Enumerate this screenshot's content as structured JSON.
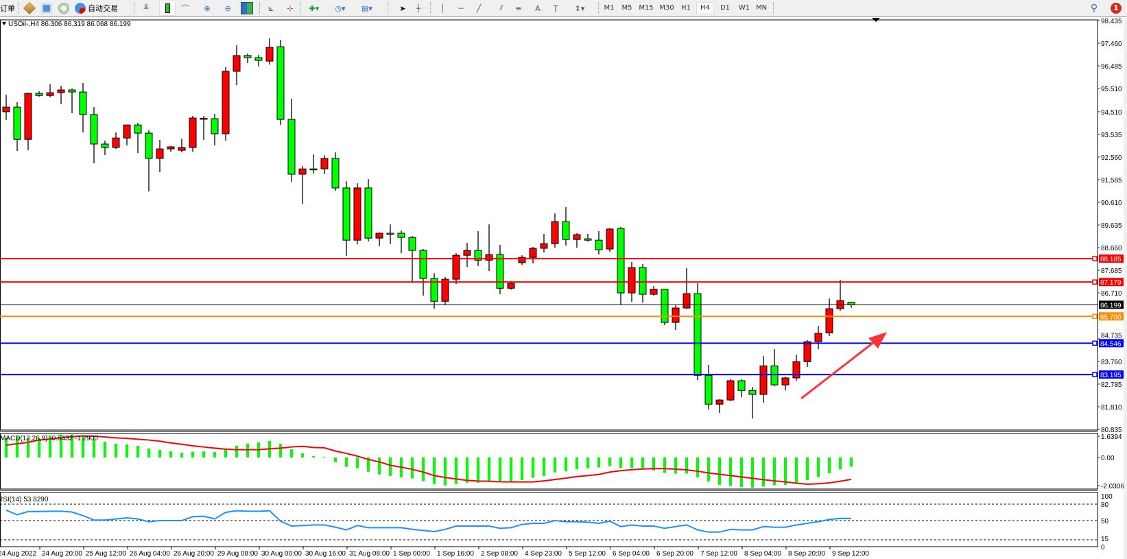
{
  "toolbar": {
    "order_label": "订单",
    "auto_trade_label": "自动交易",
    "timeframes": [
      "M1",
      "M5",
      "M15",
      "M30",
      "H1",
      "H4",
      "D1",
      "W1",
      "MN"
    ],
    "active_timeframe": "H4",
    "notification_count": "1"
  },
  "chart_header": {
    "symbol": "USOil-,H4",
    "ohlc": "86.306 86.319 86.068 86.199"
  },
  "macd_header": "MACD(12,26,9) -0.5432 -1.2900",
  "rsi_header": "RSI(14) 53.8290",
  "colors": {
    "bull": "#ff0000",
    "bear": "#00ff00",
    "macd_hist": "#00ff00",
    "macd_signal": "#ff0000",
    "rsi": "#1e90ff",
    "arrow": "#ff3333"
  },
  "chart_data": [
    {
      "type": "candlestick",
      "y_range": [
        80.835,
        98.435
      ],
      "price_ticks": [
        "98.435",
        "97.460",
        "96.485",
        "95.510",
        "94.510",
        "93.535",
        "92.560",
        "91.585",
        "90.610",
        "89.635",
        "88.660",
        "87.685",
        "86.710",
        "84.735",
        "83.760",
        "82.785",
        "81.810",
        "80.835"
      ],
      "time_labels": [
        "24 Aug 2022",
        "24 Aug 20:00",
        "25 Aug 12:00",
        "26 Aug 04:00",
        "26 Aug 20:00",
        "29 Aug 08:00",
        "30 Aug 00:00",
        "30 Aug 16:00",
        "31 Aug 08:00",
        "1 Sep 00:00",
        "1 Sep 16:00",
        "2 Sep 08:00",
        "4 Sep 23:00",
        "5 Sep 12:00",
        "6 Sep 04:00",
        "6 Sep 20:00",
        "7 Sep 12:00",
        "8 Sep 04:00",
        "8 Sep 20:00",
        "9 Sep 12:00"
      ],
      "candles_ohlc": [
        [
          94.51,
          95.24,
          94.15,
          94.71
        ],
        [
          94.71,
          94.92,
          92.82,
          93.32
        ],
        [
          93.32,
          95.33,
          92.85,
          95.3
        ],
        [
          95.3,
          95.39,
          95.16,
          95.21
        ],
        [
          95.21,
          95.69,
          95.13,
          95.33
        ],
        [
          95.33,
          95.63,
          94.83,
          95.45
        ],
        [
          95.45,
          95.51,
          94.45,
          95.36
        ],
        [
          95.36,
          95.75,
          93.62,
          94.39
        ],
        [
          94.39,
          94.71,
          92.29,
          93.12
        ],
        [
          93.12,
          93.27,
          92.65,
          92.97
        ],
        [
          92.97,
          93.62,
          92.91,
          93.38
        ],
        [
          93.38,
          93.96,
          93.06,
          93.94
        ],
        [
          93.94,
          94.03,
          92.73,
          93.59
        ],
        [
          93.59,
          93.71,
          91.08,
          92.5
        ],
        [
          92.5,
          93.3,
          91.91,
          92.91
        ],
        [
          92.91,
          93.03,
          92.79,
          93.0
        ],
        [
          92.85,
          93.35,
          92.76,
          92.97
        ],
        [
          92.97,
          94.33,
          92.79,
          94.24
        ],
        [
          94.21,
          94.33,
          93.3,
          94.23
        ],
        [
          94.21,
          94.42,
          93.06,
          93.56
        ],
        [
          93.56,
          96.43,
          93.27,
          96.25
        ],
        [
          96.25,
          97.37,
          95.66,
          96.93
        ],
        [
          96.93,
          97.02,
          96.6,
          96.84
        ],
        [
          96.84,
          96.96,
          96.46,
          96.72
        ],
        [
          96.69,
          97.67,
          96.54,
          97.28
        ],
        [
          97.31,
          97.61,
          93.94,
          94.18
        ],
        [
          94.18,
          95.07,
          91.49,
          91.82
        ],
        [
          91.82,
          92.17,
          90.55,
          92.05
        ],
        [
          92.05,
          92.67,
          91.85,
          92.04
        ],
        [
          92.05,
          92.64,
          91.82,
          92.5
        ],
        [
          92.5,
          92.76,
          91.11,
          91.23
        ],
        [
          91.23,
          91.52,
          88.3,
          88.98
        ],
        [
          88.98,
          91.43,
          88.8,
          91.23
        ],
        [
          91.23,
          91.61,
          88.92,
          89.07
        ],
        [
          89.07,
          89.31,
          88.72,
          89.28
        ],
        [
          89.28,
          89.66,
          88.81,
          89.26
        ],
        [
          89.28,
          89.4,
          88.42,
          89.1
        ],
        [
          89.1,
          89.16,
          87.15,
          88.54
        ],
        [
          88.54,
          88.6,
          86.59,
          87.33
        ],
        [
          87.33,
          87.56,
          86.03,
          86.35
        ],
        [
          86.35,
          87.39,
          86.21,
          87.3
        ],
        [
          87.3,
          88.42,
          87.09,
          88.33
        ],
        [
          88.33,
          88.87,
          87.83,
          88.54
        ],
        [
          88.54,
          89.37,
          87.86,
          88.12
        ],
        [
          88.12,
          89.66,
          87.65,
          88.36
        ],
        [
          88.36,
          88.78,
          86.65,
          86.91
        ],
        [
          86.91,
          87.21,
          86.85,
          87.12
        ],
        [
          88.01,
          88.33,
          87.92,
          88.24
        ],
        [
          88.24,
          88.69,
          87.98,
          88.63
        ],
        [
          88.63,
          89.25,
          88.45,
          88.83
        ],
        [
          88.83,
          90.13,
          88.66,
          89.78
        ],
        [
          89.78,
          90.4,
          88.75,
          89.01
        ],
        [
          89.01,
          89.28,
          88.66,
          89.22
        ],
        [
          89.04,
          89.25,
          88.92,
          88.98
        ],
        [
          88.98,
          89.37,
          88.36,
          88.57
        ],
        [
          88.6,
          89.51,
          88.48,
          89.46
        ],
        [
          89.48,
          89.55,
          86.21,
          86.71
        ],
        [
          86.71,
          88.04,
          86.32,
          87.8
        ],
        [
          87.8,
          87.95,
          86.29,
          86.65
        ],
        [
          86.65,
          87.0,
          86.6,
          86.87
        ],
        [
          86.87,
          86.89,
          85.32,
          85.44
        ],
        [
          85.44,
          86.18,
          85.11,
          86.06
        ],
        [
          86.06,
          87.77,
          86.03,
          86.68
        ],
        [
          86.68,
          87.12,
          82.96,
          83.16
        ],
        [
          83.16,
          83.61,
          81.69,
          81.92
        ],
        [
          81.92,
          82.13,
          81.54,
          82.1
        ],
        [
          82.1,
          83.01,
          82.05,
          82.93
        ],
        [
          82.93,
          82.99,
          82.22,
          82.51
        ],
        [
          82.51,
          82.66,
          81.3,
          82.34
        ],
        [
          82.34,
          83.99,
          81.98,
          83.57
        ],
        [
          83.57,
          84.29,
          82.7,
          82.75
        ],
        [
          82.75,
          83.1,
          82.51,
          83.05
        ],
        [
          83.05,
          84.05,
          82.93,
          83.75
        ],
        [
          83.75,
          84.67,
          83.52,
          84.61
        ],
        [
          84.61,
          85.29,
          84.29,
          84.97
        ],
        [
          84.99,
          86.47,
          84.85,
          86.03
        ],
        [
          86.03,
          87.27,
          85.95,
          86.38
        ],
        [
          86.306,
          86.319,
          86.068,
          86.199
        ]
      ],
      "horizontal_lines": [
        {
          "price": 88.185,
          "color": "#ff0000",
          "label_text": "#ffffff"
        },
        {
          "price": 87.179,
          "color": "#ff0000",
          "label_text": "#ffffff"
        },
        {
          "price": 85.7,
          "color": "#ff8c00",
          "label_text": "#ffffff"
        },
        {
          "price": 84.546,
          "color": "#0000ff",
          "label_text": "#ffffff"
        },
        {
          "price": 83.195,
          "color": "#0000ff",
          "label_text": "#ffffff"
        }
      ],
      "bid_line": {
        "price": 86.199,
        "color": "#000000"
      }
    },
    {
      "type": "bar",
      "name": "MACD(12,26,9)",
      "axis_labels": [
        "1.6394",
        "0.00",
        "-2.0306"
      ],
      "histogram": [
        1.16,
        1.23,
        1.16,
        1.16,
        1.3,
        1.36,
        1.36,
        1.23,
        1.09,
        0.93,
        0.81,
        0.77,
        0.69,
        0.53,
        0.45,
        0.36,
        0.28,
        0.34,
        0.36,
        0.32,
        0.53,
        0.69,
        0.81,
        0.89,
        0.97,
        0.81,
        0.49,
        0.24,
        0.08,
        -0.01,
        -0.27,
        -0.55,
        -0.63,
        -0.84,
        -1.0,
        -1.09,
        -1.17,
        -1.24,
        -1.4,
        -1.57,
        -1.65,
        -1.57,
        -1.49,
        -1.49,
        -1.4,
        -1.4,
        -1.43,
        -1.34,
        -1.2,
        -1.09,
        -0.88,
        -0.81,
        -0.69,
        -0.63,
        -0.59,
        -0.51,
        -0.63,
        -0.63,
        -0.63,
        -0.77,
        -0.91,
        -0.95,
        -0.95,
        -1.17,
        -1.42,
        -1.62,
        -1.68,
        -1.74,
        -1.78,
        -1.72,
        -1.64,
        -1.62,
        -1.51,
        -1.34,
        -1.15,
        -0.93,
        -0.7,
        -0.5432
      ],
      "signal": [
        0.73,
        0.81,
        0.89,
        1.03,
        1.09,
        1.16,
        1.23,
        1.27,
        1.26,
        1.21,
        1.16,
        1.13,
        1.08,
        1.03,
        0.96,
        0.86,
        0.78,
        0.69,
        0.62,
        0.55,
        0.49,
        0.46,
        0.46,
        0.46,
        0.51,
        0.55,
        0.62,
        0.66,
        0.59,
        0.57,
        0.38,
        0.24,
        0.08,
        -0.12,
        -0.26,
        -0.46,
        -0.57,
        -0.7,
        -0.86,
        -1.07,
        -1.18,
        -1.27,
        -1.35,
        -1.39,
        -1.4,
        -1.43,
        -1.44,
        -1.44,
        -1.44,
        -1.38,
        -1.3,
        -1.22,
        -1.13,
        -1.07,
        -1.0,
        -0.86,
        -0.78,
        -0.72,
        -0.68,
        -0.66,
        -0.66,
        -0.69,
        -0.73,
        -0.81,
        -0.91,
        -0.99,
        -1.07,
        -1.15,
        -1.23,
        -1.31,
        -1.38,
        -1.44,
        -1.52,
        -1.58,
        -1.55,
        -1.5,
        -1.4,
        -1.29
      ]
    },
    {
      "type": "line",
      "name": "RSI(14)",
      "levels": [
        80,
        50,
        15
      ],
      "axis_labels": [
        "100",
        "80",
        "50",
        "15",
        "0"
      ],
      "values": [
        69,
        60.5,
        66.5,
        66.5,
        67,
        67,
        65.6,
        59,
        51,
        51,
        53,
        55,
        53,
        48,
        50,
        50,
        50,
        57,
        58,
        53,
        65,
        68,
        67,
        67,
        68,
        49,
        40,
        41,
        42,
        42,
        38,
        33,
        41,
        37,
        37,
        37,
        37,
        34,
        32,
        30,
        34,
        40,
        40,
        40,
        40,
        36,
        37,
        43,
        45,
        45,
        50,
        48,
        48,
        47,
        45,
        49,
        39,
        42,
        40,
        40,
        36,
        39,
        42,
        33,
        29,
        29,
        34,
        33,
        33,
        39,
        38,
        38,
        42,
        45,
        48,
        52,
        54,
        53.829
      ]
    }
  ]
}
